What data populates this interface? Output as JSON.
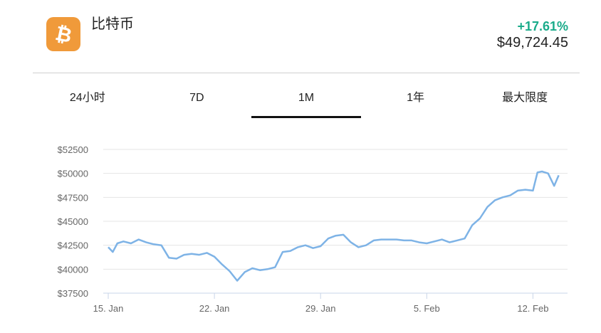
{
  "coin": {
    "icon": "bitcoin-icon",
    "icon_color": "#f09a3a",
    "symbol_glyph": "₿",
    "name": "比特币"
  },
  "change": {
    "value": "+17.61%",
    "color": "#1aab8a"
  },
  "price": "$49,724.45",
  "tabs": [
    {
      "label": "24小时",
      "active": false
    },
    {
      "label": "7D",
      "active": false
    },
    {
      "label": "1M",
      "active": true
    },
    {
      "label": "1年",
      "active": false
    },
    {
      "label": "最大限度",
      "active": false
    }
  ],
  "chart_data": {
    "type": "line",
    "line_color": "#7eb3e6",
    "grid": true,
    "y_ticks": [
      "$52500",
      "$50000",
      "$47500",
      "$45000",
      "$42500",
      "$40000",
      "$37500"
    ],
    "y_tick_values": [
      52500,
      50000,
      47500,
      45000,
      42500,
      40000,
      37500
    ],
    "ylim": [
      37500,
      52500
    ],
    "x_ticks": [
      "15. Jan",
      "22. Jan",
      "29. Jan",
      "5. Feb",
      "12. Feb"
    ],
    "x_tick_days": [
      0,
      7,
      14,
      21,
      28
    ],
    "series": [
      {
        "x_days": [
          0,
          0.3,
          0.6,
          1,
          1.5,
          2,
          2.5,
          3,
          3.5,
          4,
          4.5,
          5,
          5.5,
          6,
          6.5,
          7,
          7.5,
          8,
          8.5,
          9,
          9.5,
          10,
          10.5,
          11,
          11.5,
          12,
          12.5,
          13,
          13.5,
          14,
          14.5,
          15,
          15.5,
          16,
          16.5,
          17,
          17.5,
          18,
          18.5,
          19,
          19.5,
          20,
          20.5,
          21,
          21.5,
          22,
          22.5,
          23,
          23.5,
          24,
          24.5,
          25,
          25.5,
          26,
          26.5,
          27,
          27.5,
          28,
          28.3,
          28.6,
          29,
          29.4,
          29.7
        ],
        "y": [
          42300,
          41800,
          42700,
          42900,
          42700,
          43100,
          42800,
          42600,
          42500,
          41200,
          41100,
          41500,
          41600,
          41500,
          41700,
          41300,
          40500,
          39800,
          38800,
          39700,
          40100,
          39900,
          40000,
          40200,
          41800,
          41900,
          42300,
          42500,
          42200,
          42400,
          43200,
          43500,
          43600,
          42800,
          42300,
          42500,
          43000,
          43100,
          43100,
          43100,
          43000,
          43000,
          42800,
          42700,
          42900,
          43100,
          42800,
          43000,
          43200,
          44600,
          45300,
          46500,
          47200,
          47500,
          47700,
          48200,
          48300,
          48200,
          50100,
          50200,
          50000,
          48700,
          49800
        ]
      }
    ]
  }
}
